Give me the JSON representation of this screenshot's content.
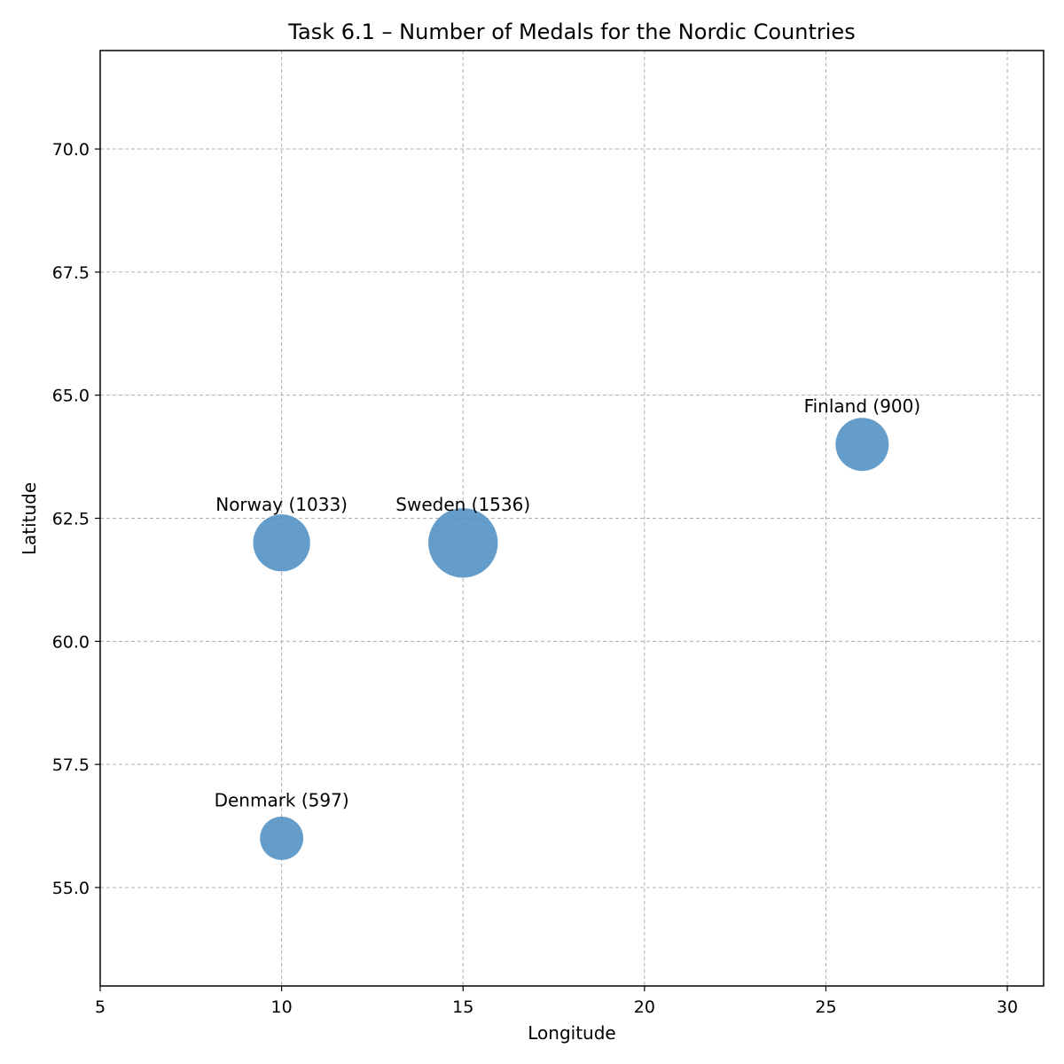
{
  "chart_data": {
    "type": "scatter",
    "title": "Task 6.1 – Number of Medals for the Nordic Countries",
    "xlabel": "Longitude",
    "ylabel": "Latitude",
    "xlim": [
      5,
      31
    ],
    "ylim": [
      53,
      72
    ],
    "xticks": [
      5,
      10,
      15,
      20,
      25,
      30
    ],
    "xtick_labels": [
      "5",
      "10",
      "15",
      "20",
      "25",
      "30"
    ],
    "yticks": [
      55,
      57.5,
      60,
      62.5,
      65,
      67.5,
      70
    ],
    "ytick_labels": [
      "55.0",
      "57.5",
      "60.0",
      "62.5",
      "65.0",
      "67.5",
      "70.0"
    ],
    "grid": true,
    "marker_color": "#4f8fc3",
    "points": [
      {
        "country": "Norway",
        "x": 10,
        "y": 62,
        "medals": 1033,
        "label": "Norway (1033)"
      },
      {
        "country": "Sweden",
        "x": 15,
        "y": 62,
        "medals": 1536,
        "label": "Sweden (1536)"
      },
      {
        "country": "Finland",
        "x": 26,
        "y": 64,
        "medals": 900,
        "label": "Finland (900)"
      },
      {
        "country": "Denmark",
        "x": 10,
        "y": 56,
        "medals": 597,
        "label": "Denmark (597)"
      }
    ]
  }
}
